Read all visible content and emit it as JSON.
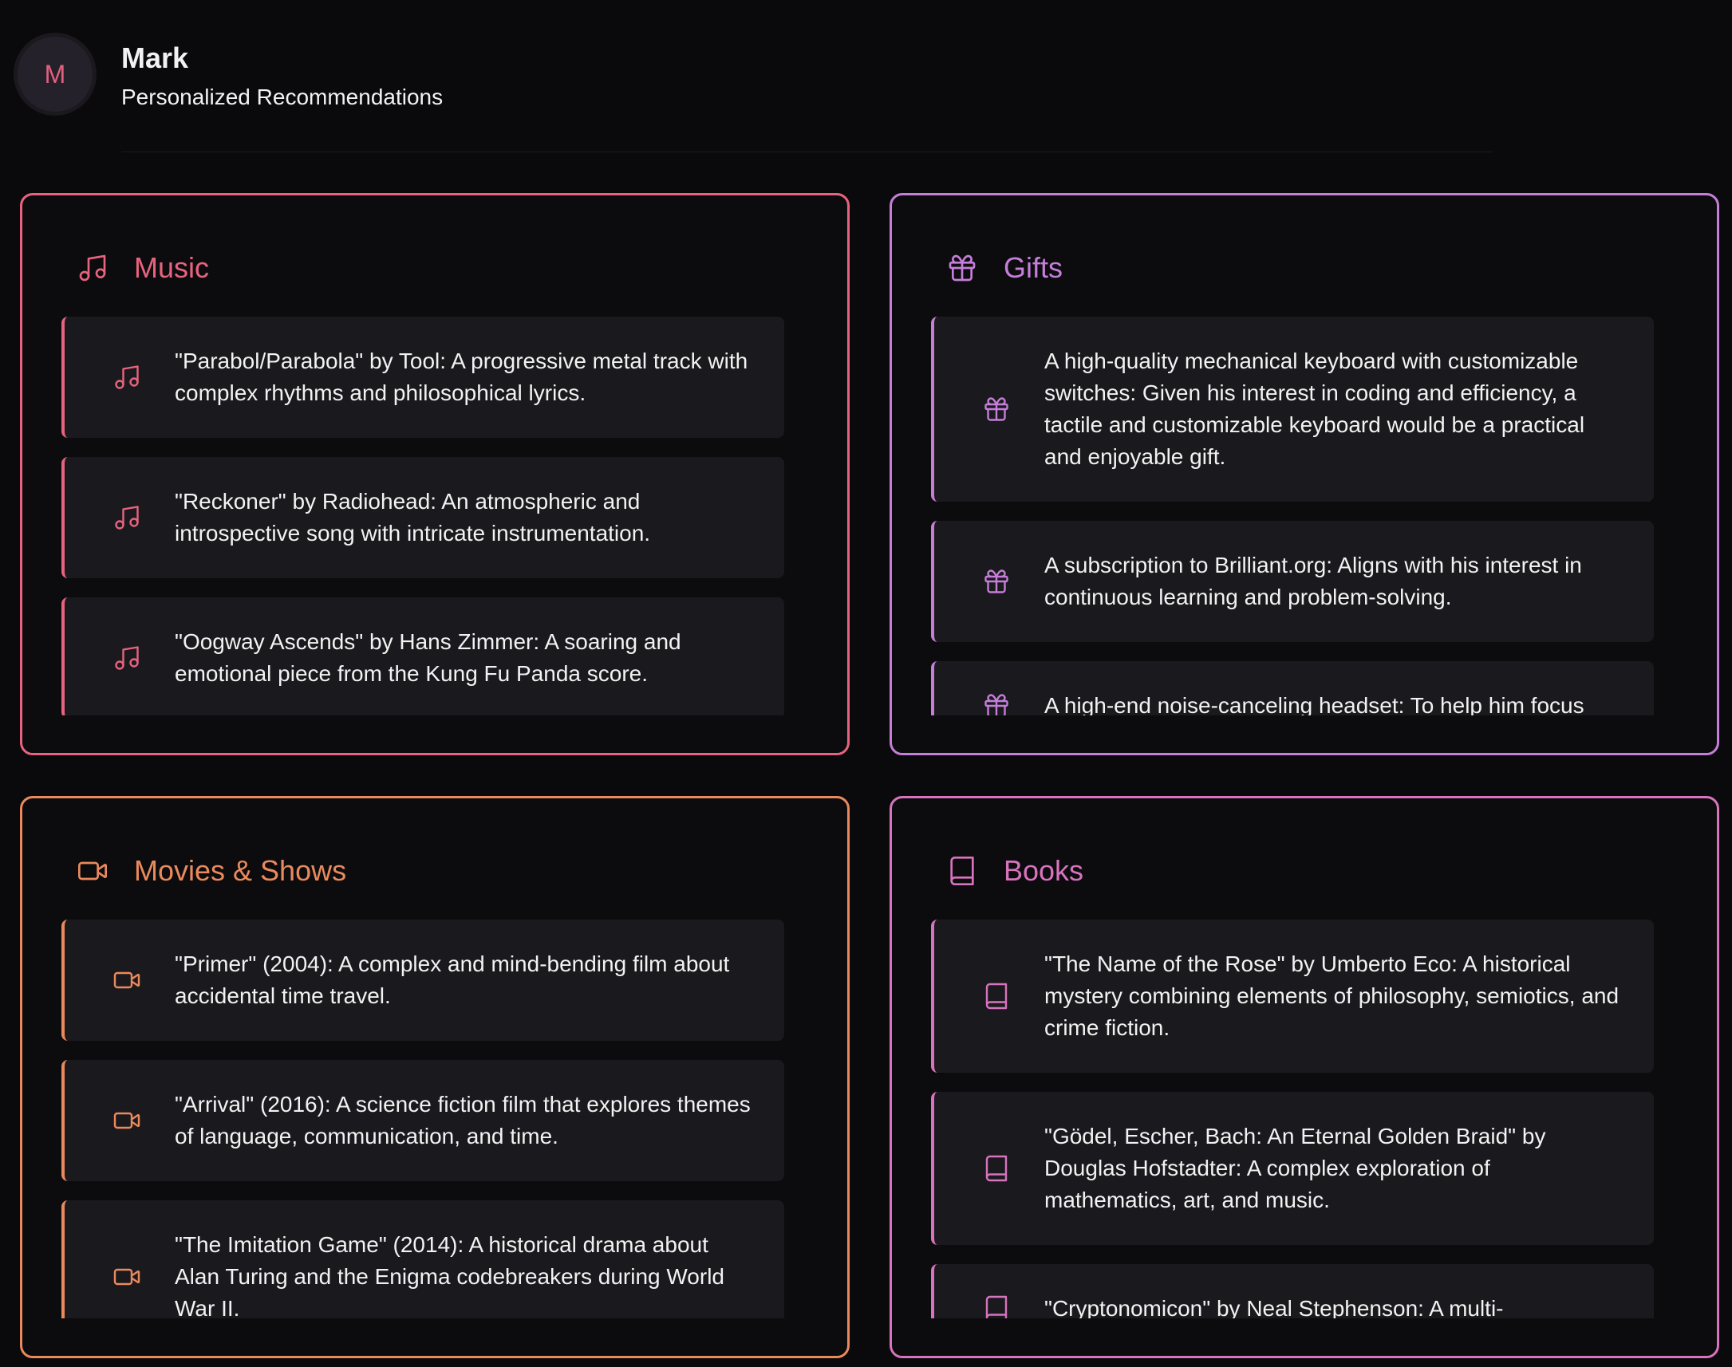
{
  "header": {
    "avatar": "M",
    "name": "Mark",
    "subtitle": "Personalized Recommendations"
  },
  "sections": [
    {
      "title": "Music",
      "items": [
        "\"Parabol/Parabola\" by Tool: A progressive metal track with complex rhythms and philosophical lyrics.",
        "\"Reckoner\" by Radiohead: An atmospheric and introspective song with intricate instrumentation.",
        "\"Oogway Ascends\" by Hans Zimmer: A soaring and emotional piece from the Kung Fu Panda score."
      ]
    },
    {
      "title": "Gifts",
      "items": [
        "A high-quality mechanical keyboard with customizable switches: Given his interest in coding and efficiency, a tactile and customizable keyboard would be a practical and enjoyable gift.",
        "A subscription to Brilliant.org: Aligns with his interest in continuous learning and problem-solving.",
        "A high-end noise-canceling headset: To help him focus"
      ]
    },
    {
      "title": "Movies & Shows",
      "items": [
        "\"Primer\" (2004): A complex and mind-bending film about accidental time travel.",
        "\"Arrival\" (2016): A science fiction film that explores themes of language, communication, and time.",
        "\"The Imitation Game\" (2014): A historical drama about Alan Turing and the Enigma codebreakers during World War II."
      ]
    },
    {
      "title": "Books",
      "items": [
        "\"The Name of the Rose\" by Umberto Eco: A historical mystery combining elements of philosophy, semiotics, and crime fiction.",
        "\"Gödel, Escher, Bach: An Eternal Golden Braid\" by Douglas Hofstadter: A complex exploration of mathematics, art, and music.",
        "\"Cryptonomicon\" by Neal Stephenson: A multi-"
      ]
    }
  ]
}
